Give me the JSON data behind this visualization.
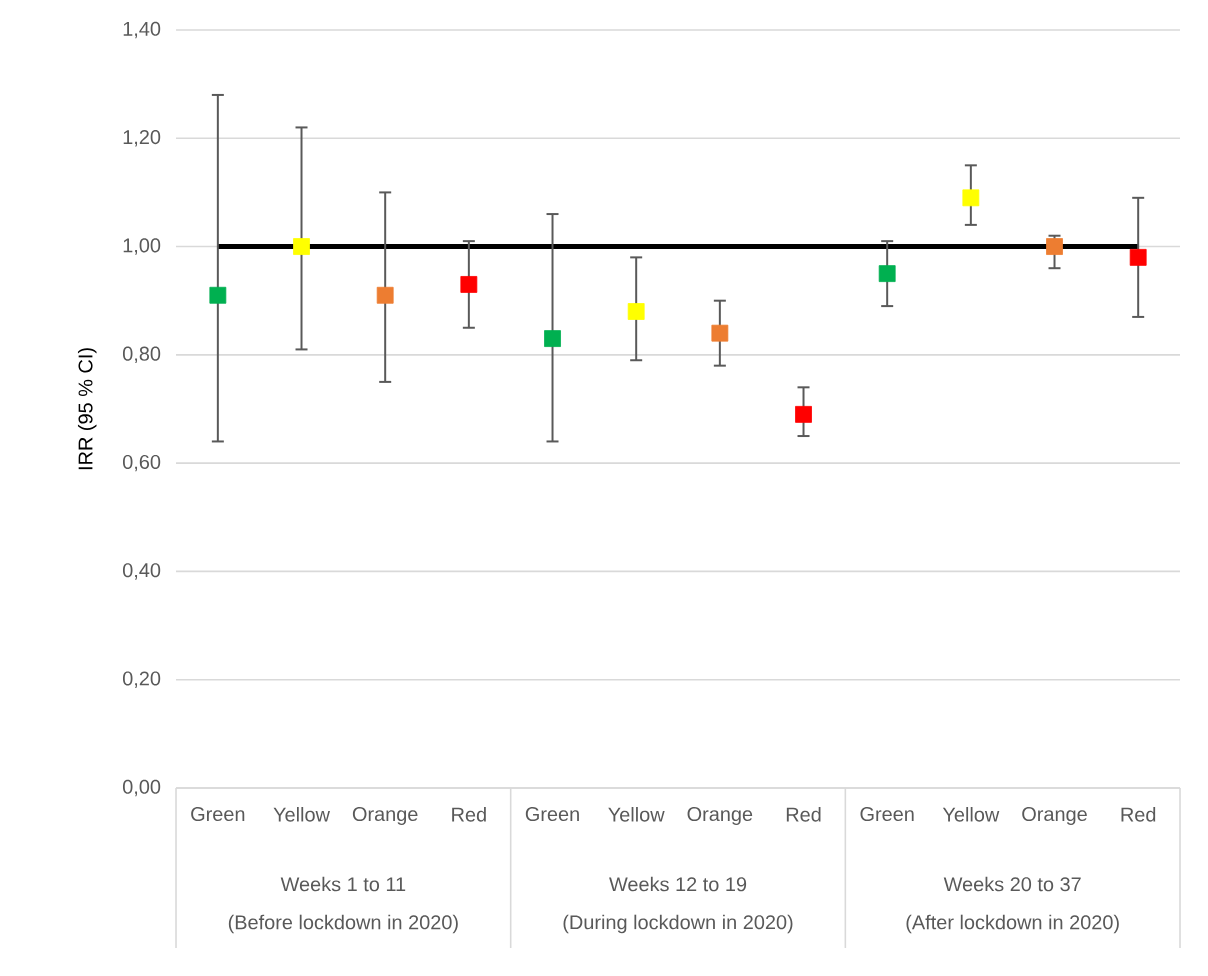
{
  "chart_data": {
    "type": "scatter",
    "ylabel": "IRR (95 % CI)",
    "categories": [
      "Green",
      "Yellow",
      "Orange",
      "Red",
      "Green",
      "Yellow",
      "Orange",
      "Red",
      "Green",
      "Yellow",
      "Orange",
      "Red"
    ],
    "values": [
      0.91,
      1.0,
      0.91,
      0.93,
      0.83,
      0.88,
      0.84,
      0.69,
      0.95,
      1.09,
      1.0,
      0.98
    ],
    "errors": [
      [
        0.64,
        1.28
      ],
      [
        0.81,
        1.22
      ],
      [
        0.75,
        1.1
      ],
      [
        0.85,
        1.01
      ],
      [
        0.64,
        1.06
      ],
      [
        0.79,
        0.98
      ],
      [
        0.78,
        0.9
      ],
      [
        0.65,
        0.74
      ],
      [
        0.89,
        1.01
      ],
      [
        1.04,
        1.15
      ],
      [
        0.96,
        1.02
      ],
      [
        0.87,
        1.09
      ]
    ],
    "colors": [
      "#00b050",
      "#ffff00",
      "#ed7d31",
      "#ff0000",
      "#00b050",
      "#ffff00",
      "#ed7d31",
      "#ff0000",
      "#00b050",
      "#ffff00",
      "#ed7d31",
      "#ff0000"
    ],
    "annotations": [
      "Weeks 1 to 11",
      "(Before lockdown in 2020)",
      "Weeks 12 to 19",
      "(During lockdown in 2020)",
      "Weeks 20 to 37",
      "(After lockdown in 2020)"
    ],
    "ref_lines": [
      {
        "axis": "y",
        "value": 1.0,
        "color": "#000000"
      }
    ],
    "ylim": [
      0,
      1.4
    ],
    "yticks": [
      {
        "value": 0,
        "label": "0,00"
      },
      {
        "value": 0.2,
        "label": "0,20"
      },
      {
        "value": 0.4,
        "label": "0,40"
      },
      {
        "value": 0.6,
        "label": "0,60"
      },
      {
        "value": 0.8,
        "label": "0,80"
      },
      {
        "value": 1.0,
        "label": "1,00"
      },
      {
        "value": 1.2,
        "label": "1,20"
      },
      {
        "value": 1.4,
        "label": "1,40"
      }
    ],
    "grid": "y",
    "marker": "square"
  }
}
